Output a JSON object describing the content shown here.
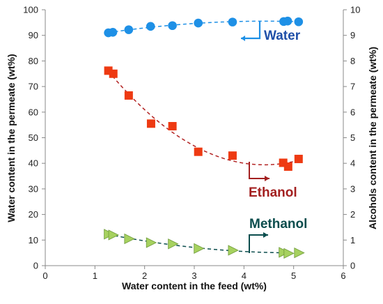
{
  "chart_data": {
    "type": "scatter",
    "xlabel": "Water content in the feed (wt%)",
    "ylabel_left": "Water content in the permeate (wt%)",
    "ylabel_right": "Alcohols content in the permeate (wt%)",
    "xlim": [
      0,
      6
    ],
    "ylim_left": [
      0,
      100
    ],
    "ylim_right": [
      0,
      10
    ],
    "x_ticks": [
      "0",
      "1",
      "2",
      "3",
      "4",
      "5",
      "6"
    ],
    "y_left_ticks": [
      "0",
      "10",
      "20",
      "30",
      "40",
      "50",
      "60",
      "70",
      "80",
      "90",
      "100"
    ],
    "y_right_ticks": [
      "0",
      "1",
      "2",
      "3",
      "4",
      "5",
      "6",
      "7",
      "8",
      "9",
      "10"
    ],
    "grid": false,
    "series": [
      {
        "name": "Water",
        "axis": "left",
        "marker": "circle",
        "color": "#1E90E6",
        "label_color": "#1F4FA8",
        "x": [
          1.27,
          1.36,
          1.68,
          2.12,
          2.56,
          3.08,
          3.77,
          4.8,
          4.88,
          5.1
        ],
        "y": [
          91.0,
          91.2,
          92.2,
          93.5,
          93.8,
          94.8,
          95.2,
          95.4,
          95.6,
          95.3
        ]
      },
      {
        "name": "Ethanol",
        "axis": "right",
        "marker": "square",
        "color": "#EE3A12",
        "label_color": "#A32020",
        "x": [
          1.27,
          1.37,
          1.68,
          2.13,
          2.56,
          3.08,
          3.77,
          4.79,
          4.89,
          5.1
        ],
        "y": [
          7.62,
          7.5,
          6.65,
          5.55,
          5.45,
          4.45,
          4.3,
          4.02,
          3.87,
          4.17
        ]
      },
      {
        "name": "Methanol",
        "axis": "right",
        "marker": "triangle",
        "color": "#A6D15F",
        "label_color": "#0B4D4D",
        "x": [
          1.27,
          1.36,
          1.68,
          2.12,
          2.56,
          3.08,
          3.77,
          4.79,
          4.89,
          5.1
        ],
        "y": [
          1.23,
          1.2,
          1.05,
          0.9,
          0.85,
          0.67,
          0.6,
          0.52,
          0.48,
          0.5
        ]
      }
    ]
  }
}
